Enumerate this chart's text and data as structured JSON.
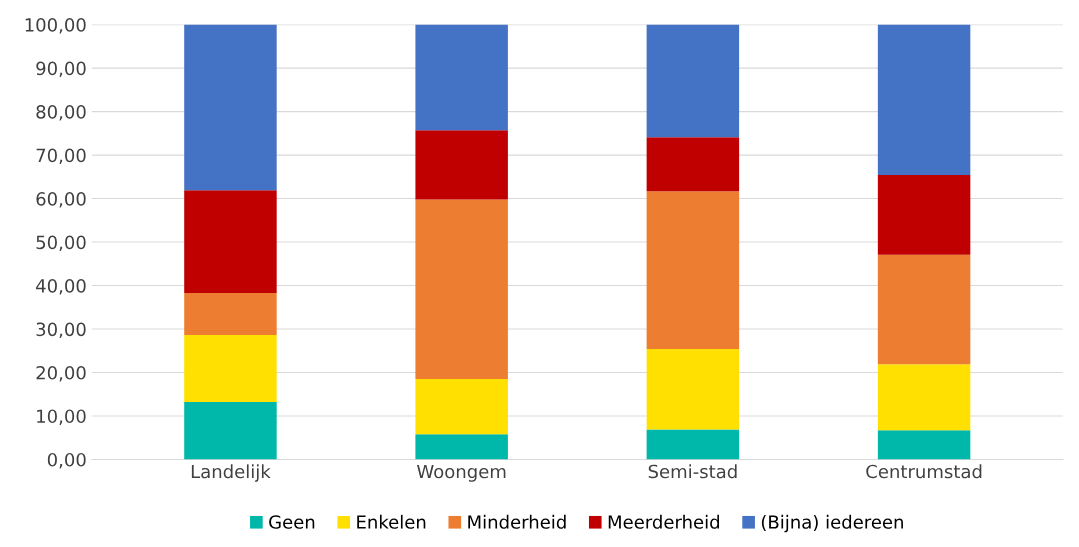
{
  "chart_data": {
    "type": "bar",
    "stacked": true,
    "categories": [
      "Landelijk",
      "Woongem",
      "Semi-stad",
      "Centrumstad"
    ],
    "series": [
      {
        "name": "Geen",
        "color": "#00b8aa",
        "values": [
          13.2,
          5.8,
          6.9,
          6.7
        ]
      },
      {
        "name": "Enkelen",
        "color": "#ffe000",
        "values": [
          15.4,
          12.7,
          18.5,
          15.2
        ]
      },
      {
        "name": "Minderheid",
        "color": "#ed7d31",
        "values": [
          9.7,
          41.3,
          36.3,
          25.2
        ]
      },
      {
        "name": "Meerderheid",
        "color": "#c00000",
        "values": [
          23.6,
          15.9,
          12.4,
          18.3
        ]
      },
      {
        "name": "(Bijna) iedereen",
        "color": "#4472c4",
        "values": [
          38.1,
          24.3,
          25.9,
          34.6
        ]
      }
    ],
    "ylim": [
      0,
      100
    ],
    "yticks": [
      {
        "value": 0,
        "label": "0,00"
      },
      {
        "value": 10,
        "label": "10,00"
      },
      {
        "value": 20,
        "label": "20,00"
      },
      {
        "value": 30,
        "label": "30,00"
      },
      {
        "value": 40,
        "label": "40,00"
      },
      {
        "value": 50,
        "label": "50,00"
      },
      {
        "value": 60,
        "label": "60,00"
      },
      {
        "value": 70,
        "label": "70,00"
      },
      {
        "value": 80,
        "label": "80,00"
      },
      {
        "value": 90,
        "label": "90,00"
      },
      {
        "value": 100,
        "label": "100,00"
      }
    ],
    "grid": "y",
    "legend": "bottom"
  }
}
